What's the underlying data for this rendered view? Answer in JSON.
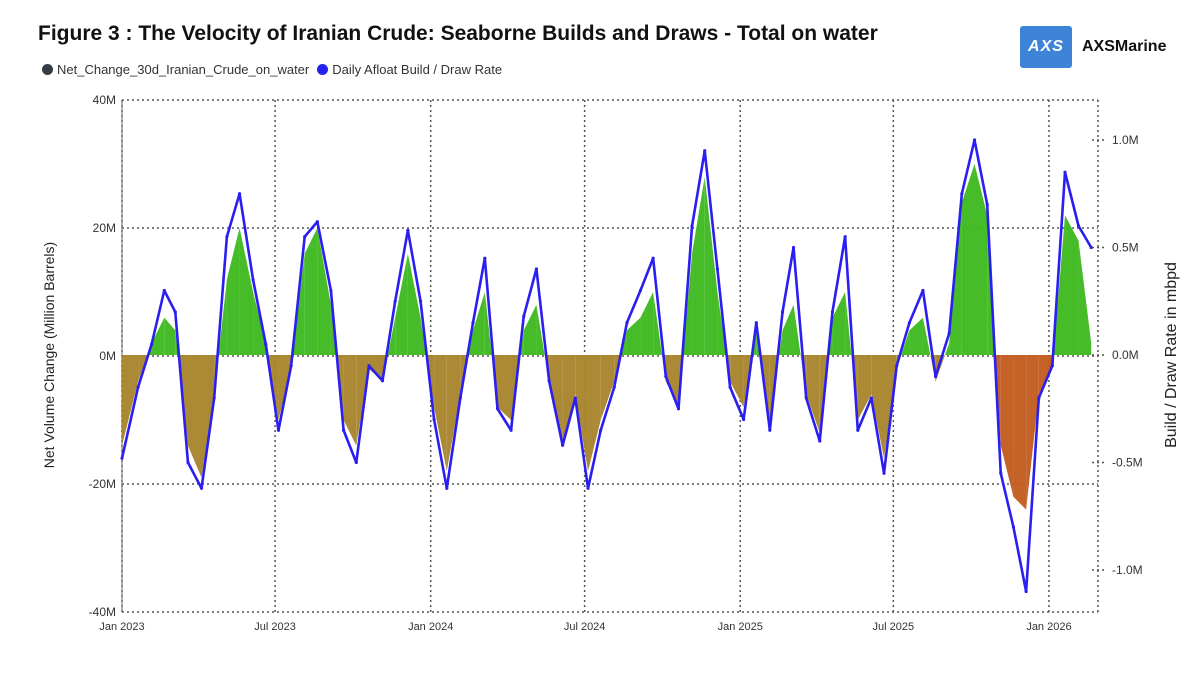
{
  "title": "Figure 3 : The Velocity of Iranian Crude: Seaborne Builds and Draws - Total on water",
  "logo": {
    "mark": "AXS",
    "name": "AXSMarine"
  },
  "legend": [
    {
      "label": "Net_Change_30d_Iranian_Crude_on_water",
      "color": "#333e48"
    },
    {
      "label": "Daily Afloat Build / Draw Rate",
      "color": "#2222ee"
    }
  ],
  "colors": {
    "build_fill": "#3cb81e",
    "draw_fill": "#a8842a",
    "draw_fill_late": "#c25a1c",
    "line": "#2a1ef0"
  },
  "chart_data": {
    "type": "area",
    "xlabel": "",
    "ylabel_left": "Net Volume Change (Million Barrels)",
    "ylabel_right": "Build / Draw Rate in mbpd",
    "ylim_left": [
      -40,
      40
    ],
    "ylim_right": [
      -1.2,
      1.2
    ],
    "xlim": [
      "2023-01-01",
      "2026-02-28"
    ],
    "x_ticks": [
      {
        "date": "2023-01-01",
        "label": "Jan 2023"
      },
      {
        "date": "2023-07-01",
        "label": "Jul 2023"
      },
      {
        "date": "2024-01-01",
        "label": "Jan 2024"
      },
      {
        "date": "2024-07-01",
        "label": "Jul 2024"
      },
      {
        "date": "2025-01-01",
        "label": "Jan 2025"
      },
      {
        "date": "2025-07-01",
        "label": "Jul 2025"
      },
      {
        "date": "2026-01-01",
        "label": "Jan 2026"
      }
    ],
    "y_ticks_left": [
      {
        "value": 40,
        "label": "40M"
      },
      {
        "value": 20,
        "label": "20M"
      },
      {
        "value": 0,
        "label": "0M"
      },
      {
        "value": -20,
        "label": "-20M"
      },
      {
        "value": -40,
        "label": "-40M"
      }
    ],
    "y_ticks_right": [
      {
        "value": 1.0,
        "label": "1.0M"
      },
      {
        "value": 0.5,
        "label": "0.5M"
      },
      {
        "value": 0.0,
        "label": "0.0M"
      },
      {
        "value": -0.5,
        "label": "-0.5M"
      },
      {
        "value": -1.0,
        "label": "-1.0M"
      }
    ],
    "grid": true,
    "legend_position": "top-left",
    "series": [
      {
        "name": "Net_Change_30d_Iranian_Crude_on_water",
        "axis": "left",
        "x": [
          "2023-01-01",
          "2023-01-20",
          "2023-02-05",
          "2023-02-20",
          "2023-03-05",
          "2023-03-20",
          "2023-04-05",
          "2023-04-20",
          "2023-05-05",
          "2023-05-20",
          "2023-06-05",
          "2023-06-20",
          "2023-07-05",
          "2023-07-20",
          "2023-08-05",
          "2023-08-20",
          "2023-09-05",
          "2023-09-20",
          "2023-10-05",
          "2023-10-20",
          "2023-11-05",
          "2023-11-20",
          "2023-12-05",
          "2023-12-20",
          "2024-01-05",
          "2024-01-20",
          "2024-02-05",
          "2024-02-20",
          "2024-03-05",
          "2024-03-20",
          "2024-04-05",
          "2024-04-20",
          "2024-05-05",
          "2024-05-20",
          "2024-06-05",
          "2024-06-20",
          "2024-07-05",
          "2024-07-20",
          "2024-08-05",
          "2024-08-20",
          "2024-09-05",
          "2024-09-20",
          "2024-10-05",
          "2024-10-20",
          "2024-11-05",
          "2024-11-20",
          "2024-12-05",
          "2024-12-20",
          "2025-01-05",
          "2025-01-20",
          "2025-02-05",
          "2025-02-20",
          "2025-03-05",
          "2025-03-20",
          "2025-04-05",
          "2025-04-20",
          "2025-05-05",
          "2025-05-20",
          "2025-06-05",
          "2025-06-20",
          "2025-07-05",
          "2025-07-20",
          "2025-08-05",
          "2025-08-20",
          "2025-09-05",
          "2025-09-20",
          "2025-10-05",
          "2025-10-20",
          "2025-11-05",
          "2025-11-20",
          "2025-12-05",
          "2025-12-20",
          "2026-01-05",
          "2026-01-20",
          "2026-02-05",
          "2026-02-20"
        ],
        "values": [
          -14,
          -4,
          2,
          6,
          4,
          -14,
          -19,
          -6,
          12,
          20,
          10,
          2,
          -10,
          -2,
          16,
          20,
          8,
          -10,
          -14,
          -2,
          -4,
          6,
          16,
          6,
          -8,
          -18,
          -6,
          4,
          10,
          -8,
          -10,
          4,
          8,
          -4,
          -14,
          -6,
          -18,
          -10,
          -4,
          4,
          6,
          10,
          -4,
          -8,
          16,
          28,
          10,
          -4,
          -8,
          4,
          -10,
          4,
          8,
          -6,
          -12,
          6,
          10,
          -10,
          -6,
          -16,
          -2,
          4,
          6,
          -4,
          2,
          24,
          30,
          22,
          -14,
          -22,
          -24,
          -6,
          -2,
          22,
          18,
          2
        ]
      },
      {
        "name": "Daily Afloat Build / Draw Rate",
        "axis": "right",
        "x": [
          "2023-01-01",
          "2023-01-20",
          "2023-02-05",
          "2023-02-20",
          "2023-03-05",
          "2023-03-20",
          "2023-04-05",
          "2023-04-20",
          "2023-05-05",
          "2023-05-20",
          "2023-06-05",
          "2023-06-20",
          "2023-07-05",
          "2023-07-20",
          "2023-08-05",
          "2023-08-20",
          "2023-09-05",
          "2023-09-20",
          "2023-10-05",
          "2023-10-20",
          "2023-11-05",
          "2023-11-20",
          "2023-12-05",
          "2023-12-20",
          "2024-01-05",
          "2024-01-20",
          "2024-02-05",
          "2024-02-20",
          "2024-03-05",
          "2024-03-20",
          "2024-04-05",
          "2024-04-20",
          "2024-05-05",
          "2024-05-20",
          "2024-06-05",
          "2024-06-20",
          "2024-07-05",
          "2024-07-20",
          "2024-08-05",
          "2024-08-20",
          "2024-09-05",
          "2024-09-20",
          "2024-10-05",
          "2024-10-20",
          "2024-11-05",
          "2024-11-20",
          "2024-12-05",
          "2024-12-20",
          "2025-01-05",
          "2025-01-20",
          "2025-02-05",
          "2025-02-20",
          "2025-03-05",
          "2025-03-20",
          "2025-04-05",
          "2025-04-20",
          "2025-05-05",
          "2025-05-20",
          "2025-06-05",
          "2025-06-20",
          "2025-07-05",
          "2025-07-20",
          "2025-08-05",
          "2025-08-20",
          "2025-09-05",
          "2025-09-20",
          "2025-10-05",
          "2025-10-20",
          "2025-11-05",
          "2025-11-20",
          "2025-12-05",
          "2025-12-20",
          "2026-01-05",
          "2026-01-20",
          "2026-02-05",
          "2026-02-20"
        ],
        "values": [
          -0.48,
          -0.15,
          0.05,
          0.3,
          0.2,
          -0.5,
          -0.62,
          -0.2,
          0.55,
          0.75,
          0.35,
          0.05,
          -0.35,
          -0.05,
          0.55,
          0.62,
          0.3,
          -0.35,
          -0.5,
          -0.05,
          -0.12,
          0.25,
          0.58,
          0.25,
          -0.3,
          -0.62,
          -0.2,
          0.15,
          0.45,
          -0.25,
          -0.35,
          0.18,
          0.4,
          -0.12,
          -0.42,
          -0.2,
          -0.62,
          -0.35,
          -0.15,
          0.15,
          0.3,
          0.45,
          -0.1,
          -0.25,
          0.6,
          0.95,
          0.4,
          -0.15,
          -0.3,
          0.15,
          -0.35,
          0.2,
          0.5,
          -0.2,
          -0.4,
          0.2,
          0.55,
          -0.35,
          -0.2,
          -0.55,
          -0.05,
          0.15,
          0.3,
          -0.1,
          0.1,
          0.75,
          1.0,
          0.7,
          -0.55,
          -0.8,
          -1.1,
          -0.2,
          -0.05,
          0.85,
          0.6,
          0.5
        ]
      }
    ]
  }
}
